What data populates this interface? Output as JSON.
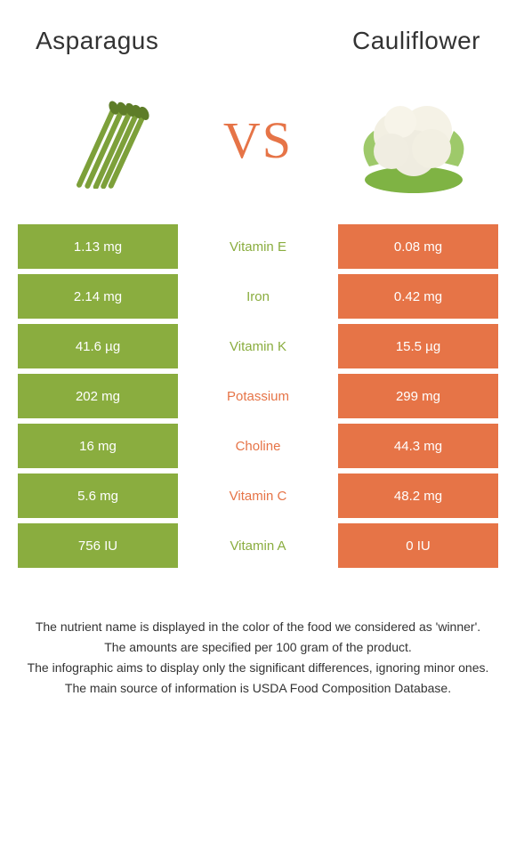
{
  "header": {
    "left_title": "Asparagus",
    "right_title": "Cauliflower",
    "vs_label": "VS"
  },
  "colors": {
    "left_bar": "#8aad3f",
    "right_bar": "#e67447",
    "vs_text": "#e67447"
  },
  "rows": [
    {
      "nutrient": "Vitamin E",
      "left": "1.13 mg",
      "right": "0.08 mg",
      "winner": "left"
    },
    {
      "nutrient": "Iron",
      "left": "2.14 mg",
      "right": "0.42 mg",
      "winner": "left"
    },
    {
      "nutrient": "Vitamin K",
      "left": "41.6 µg",
      "right": "15.5 µg",
      "winner": "left"
    },
    {
      "nutrient": "Potassium",
      "left": "202 mg",
      "right": "299 mg",
      "winner": "right"
    },
    {
      "nutrient": "Choline",
      "left": "16 mg",
      "right": "44.3 mg",
      "winner": "right"
    },
    {
      "nutrient": "Vitamin C",
      "left": "5.6 mg",
      "right": "48.2 mg",
      "winner": "right"
    },
    {
      "nutrient": "Vitamin A",
      "left": "756 IU",
      "right": "0 IU",
      "winner": "left"
    }
  ],
  "footer": {
    "line1": "The nutrient name is displayed in the color of the food we considered as 'winner'.",
    "line2": "The amounts are specified per 100 gram of the product.",
    "line3": "The infographic aims to display only the significant differences, ignoring minor ones.",
    "line4": "The main source of information is USDA Food Composition Database."
  }
}
